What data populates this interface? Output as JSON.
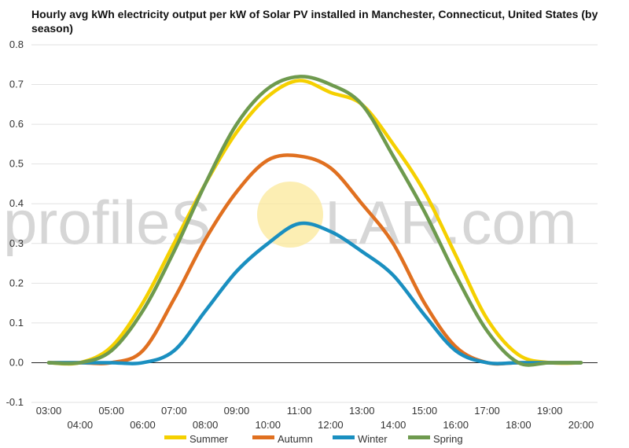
{
  "watermark": {
    "text_left": "profileS",
    "text_right": "LAR.com",
    "sun_color": "#fbe89a",
    "text_color": "#d6d6d6"
  },
  "chart_data": {
    "type": "line",
    "title": "Hourly avg kWh electricity output per kW of Solar PV installed in Manchester, Connecticut, United States (by season)",
    "xlabel": "",
    "ylabel": "",
    "x": [
      3,
      4,
      5,
      6,
      7,
      8,
      9,
      10,
      11,
      12,
      13,
      14,
      15,
      16,
      17,
      18,
      19,
      20
    ],
    "x_tick_labels": [
      "03:00",
      "04:00",
      "05:00",
      "06:00",
      "07:00",
      "08:00",
      "09:00",
      "10:00",
      "11:00",
      "12:00",
      "13:00",
      "14:00",
      "15:00",
      "16:00",
      "17:00",
      "18:00",
      "19:00",
      "20:00"
    ],
    "ylim": [
      -0.1,
      0.8
    ],
    "y_ticks": [
      -0.1,
      0.0,
      0.1,
      0.2,
      0.3,
      0.4,
      0.5,
      0.6,
      0.7,
      0.8
    ],
    "y_tick_labels": [
      "-0.1",
      "0.0",
      "0.1",
      "0.2",
      "0.3",
      "0.4",
      "0.5",
      "0.6",
      "0.7",
      "0.8"
    ],
    "grid": true,
    "legend_position": "bottom",
    "series": [
      {
        "name": "Summer",
        "color": "#f5d000",
        "values": [
          0.0,
          0.0,
          0.04,
          0.15,
          0.3,
          0.45,
          0.58,
          0.67,
          0.71,
          0.68,
          0.65,
          0.55,
          0.43,
          0.27,
          0.11,
          0.02,
          0.0,
          0.0
        ]
      },
      {
        "name": "Autumn",
        "color": "#e07020",
        "values": [
          0.0,
          0.0,
          0.0,
          0.03,
          0.16,
          0.31,
          0.43,
          0.51,
          0.52,
          0.49,
          0.4,
          0.3,
          0.15,
          0.04,
          0.0,
          0.0,
          0.0,
          0.0
        ]
      },
      {
        "name": "Winter",
        "color": "#1a8fc0",
        "values": [
          0.0,
          0.0,
          0.0,
          0.0,
          0.03,
          0.13,
          0.23,
          0.3,
          0.35,
          0.33,
          0.28,
          0.22,
          0.12,
          0.03,
          0.0,
          0.0,
          0.0,
          0.0
        ]
      },
      {
        "name": "Spring",
        "color": "#6e9a4e",
        "values": [
          0.0,
          0.0,
          0.03,
          0.13,
          0.28,
          0.45,
          0.6,
          0.69,
          0.72,
          0.7,
          0.65,
          0.52,
          0.38,
          0.22,
          0.08,
          0.0,
          0.0,
          0.0
        ]
      }
    ]
  }
}
